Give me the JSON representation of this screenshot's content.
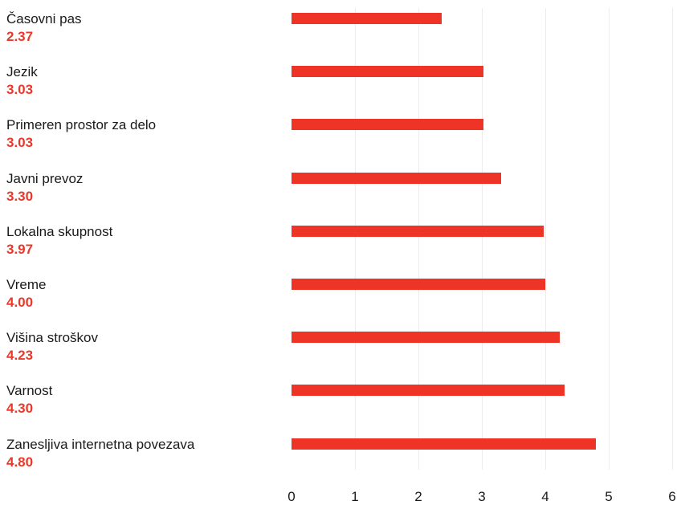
{
  "chart_data": {
    "type": "bar",
    "orientation": "horizontal",
    "categories": [
      "Časovni pas",
      "Jezik",
      "Primeren prostor za delo",
      "Javni prevoz",
      "Lokalna skupnost",
      "Vreme",
      "Višina stroškov",
      "Varnost",
      "Zanesljiva internetna povezava"
    ],
    "values": [
      2.37,
      3.03,
      3.03,
      3.3,
      3.97,
      4.0,
      4.23,
      4.3,
      4.8
    ],
    "value_labels": [
      "2.37",
      "3.03",
      "3.03",
      "3.30",
      "3.97",
      "4.00",
      "4.23",
      "4.30",
      "4.80"
    ],
    "xlim": [
      0,
      6
    ],
    "xticks": [
      0,
      1,
      2,
      3,
      4,
      5,
      6
    ],
    "tick_labels": [
      "0",
      "1",
      "2",
      "3",
      "4",
      "5",
      "6"
    ],
    "grid": true,
    "colors": {
      "bar": "#ee3427",
      "value_label": "#e8392b",
      "grid": "#ededed",
      "text": "#1a1a1a"
    }
  }
}
